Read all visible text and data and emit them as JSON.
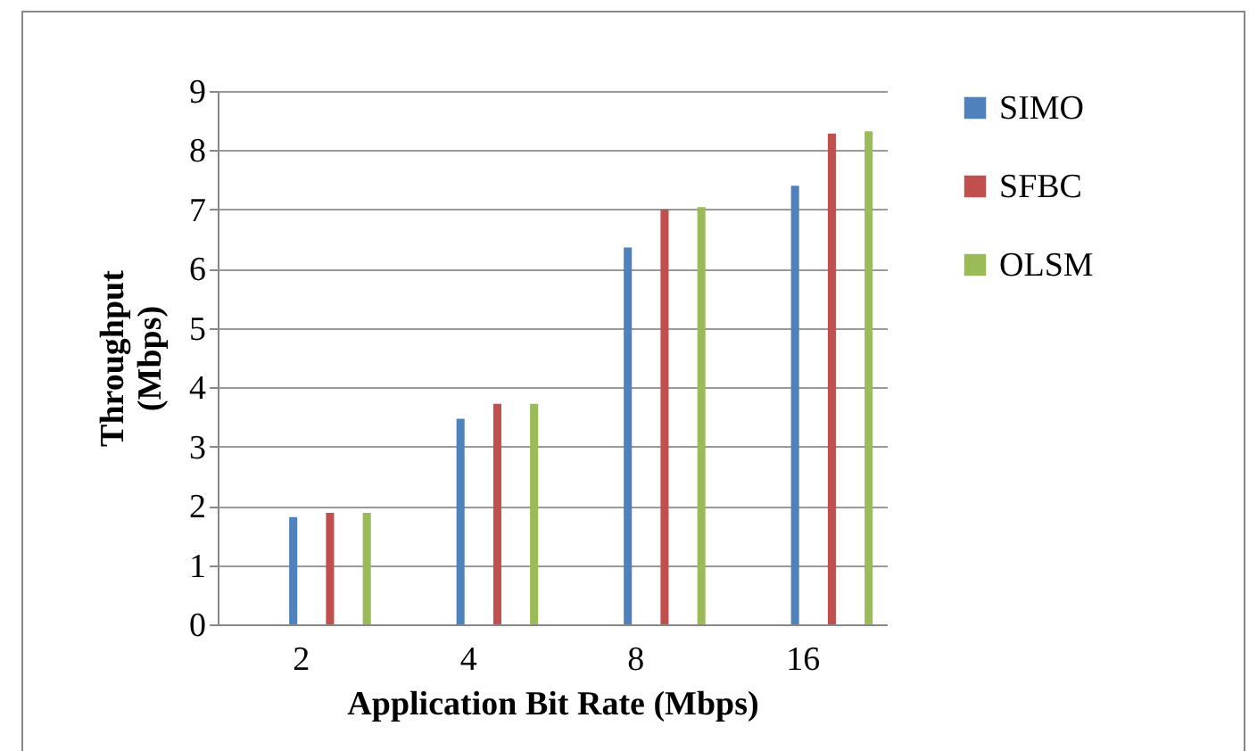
{
  "chart_data": {
    "type": "bar",
    "xlabel": "Application Bit Rate (Mbps)",
    "ylabel": "Throughput (Mbps)",
    "categories": [
      "2",
      "4",
      "8",
      "16"
    ],
    "series": [
      {
        "name": "SIMO",
        "color": "#4f81bd",
        "values": [
          1.81,
          3.47,
          6.36,
          7.4
        ]
      },
      {
        "name": "SFBC",
        "color": "#c0504d",
        "values": [
          1.88,
          3.72,
          7.0,
          8.28
        ]
      },
      {
        "name": "OLSM",
        "color": "#9bbb59",
        "values": [
          1.88,
          3.72,
          7.04,
          8.32
        ]
      }
    ],
    "ylim": [
      0,
      9
    ],
    "yticks": [
      0,
      1,
      2,
      3,
      4,
      5,
      6,
      7,
      8,
      9
    ],
    "grid": "y",
    "legend": "right"
  }
}
